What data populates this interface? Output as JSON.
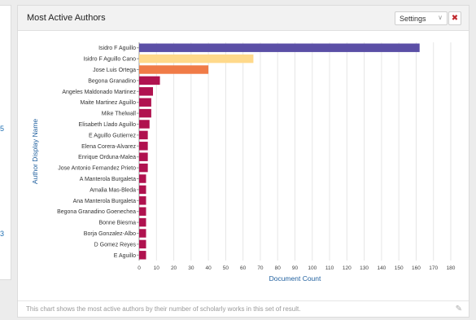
{
  "left_panel": {
    "values": [
      "5",
      "3"
    ]
  },
  "card": {
    "title": "Most Active Authors",
    "settings_label": "Settings",
    "close_label": "✖",
    "footer_text": "This chart shows the most active authors by their number of scholarly works in this set of result."
  },
  "chart_data": {
    "type": "bar",
    "orientation": "horizontal",
    "xlabel": "Document Count",
    "ylabel": "Author Display Name",
    "xlim": [
      0,
      180
    ],
    "xticks": [
      0,
      10,
      20,
      30,
      40,
      50,
      60,
      70,
      80,
      90,
      100,
      110,
      120,
      130,
      140,
      150,
      160,
      170,
      180
    ],
    "grid": true,
    "categories": [
      "Isidro F Aguillo",
      "Isidro F Aguillo Cano",
      "Jose Luis Ortega",
      "Begona Granadino",
      "Angeles Maldonado Martinez",
      "Maite Martinez Aguillo",
      "Mike Thelwall",
      "Elisabeth Llado Aguillo",
      "E Aguillo Gutierrez",
      "Elena Corera-Alvarez",
      "Enrique Orduna-Malea",
      "Jose Antonio Fernandez Prieto",
      "A Manterola Burgaleta",
      "Amalia Mas-Bleda",
      "Ana Manterola Burgaleta",
      "Begona Granadino Goenechea",
      "Bonne Biesma",
      "Borja Gonzalez-Albo",
      "D Gomez Reyes",
      "E Aguillo"
    ],
    "values": [
      162,
      66,
      40,
      12,
      8,
      7,
      7,
      6,
      5,
      5,
      5,
      5,
      4,
      4,
      4,
      4,
      4,
      4,
      4,
      4
    ],
    "colors": [
      "#5b4fa6",
      "#ffd98a",
      "#f07b47",
      "#b0124f",
      "#b0124f",
      "#b0124f",
      "#b0124f",
      "#b0124f",
      "#b0124f",
      "#b0124f",
      "#b0124f",
      "#b0124f",
      "#b0124f",
      "#b0124f",
      "#b0124f",
      "#b0124f",
      "#b0124f",
      "#b0124f",
      "#b0124f",
      "#b0124f"
    ]
  }
}
